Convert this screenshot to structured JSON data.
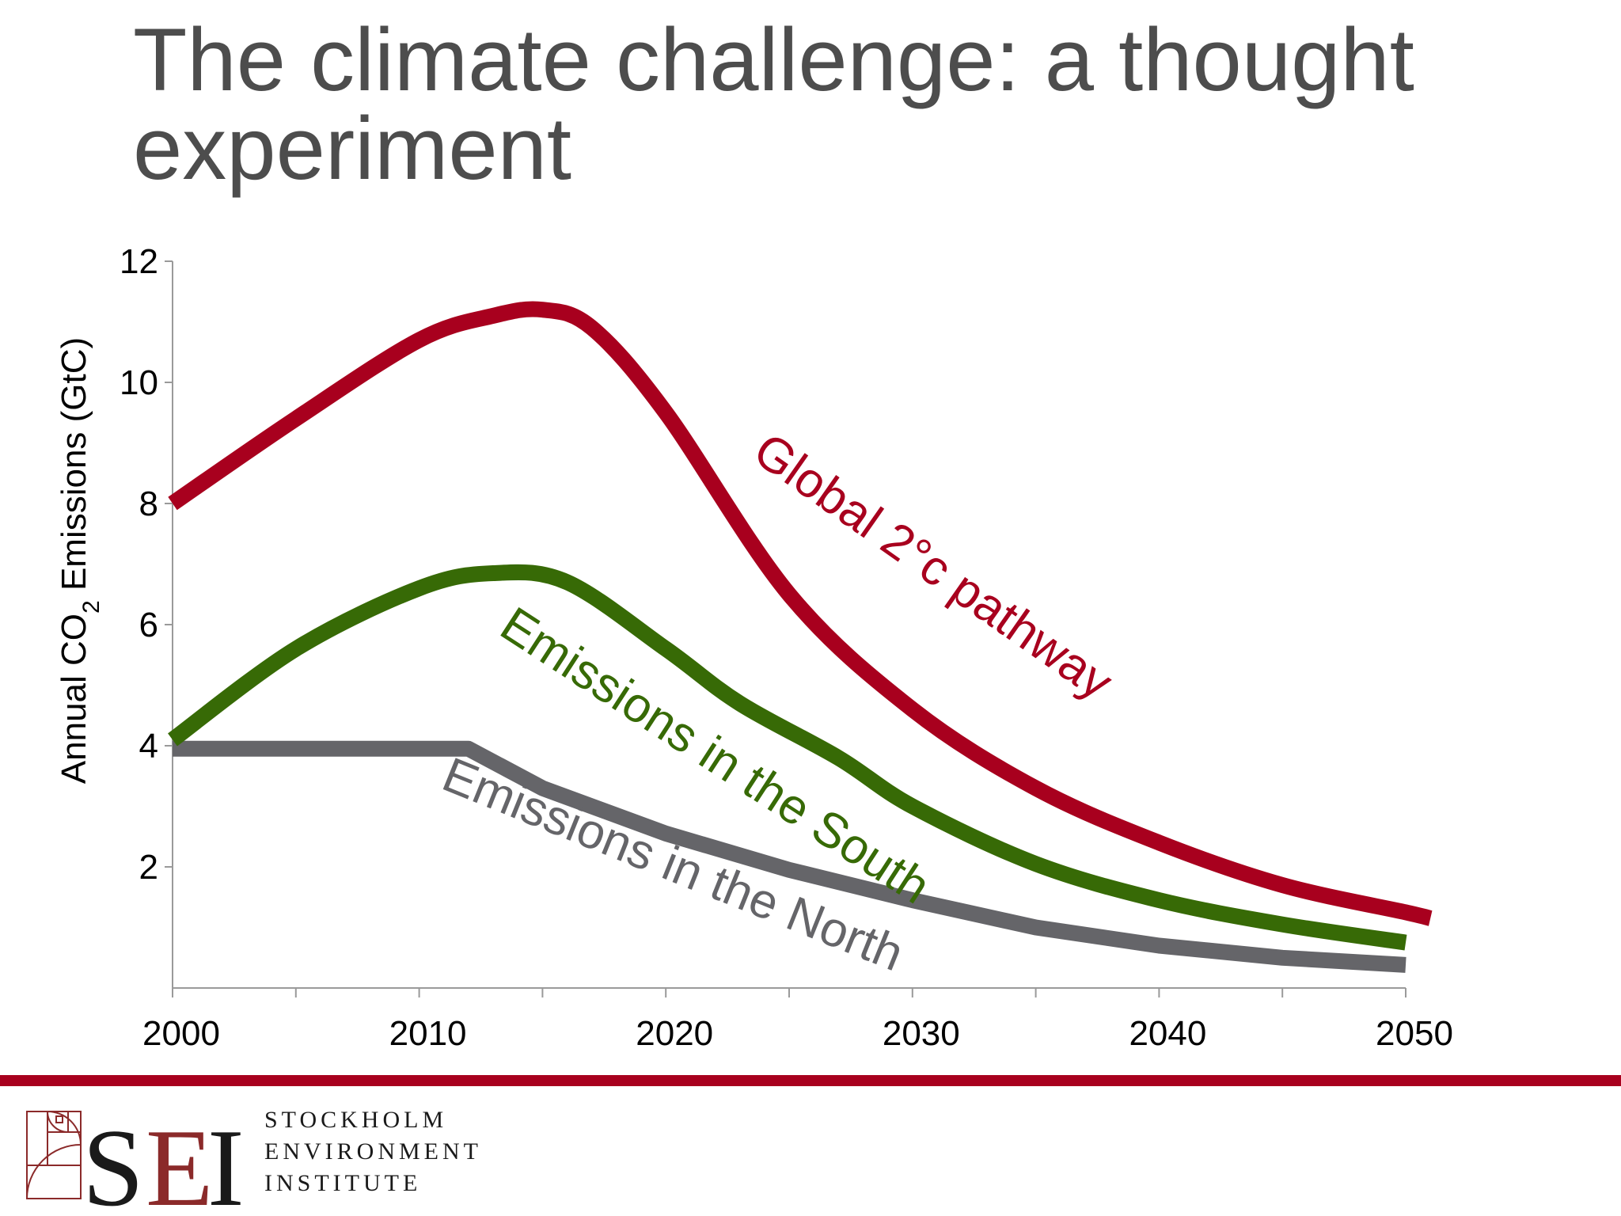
{
  "slide": {
    "title": "The climate challenge: a thought experiment"
  },
  "colors": {
    "global": "#a8001e",
    "south": "#376a06",
    "north": "#656569",
    "title": "#4d4d4d",
    "footer_rule": "#a8001e",
    "logo_dark": "#1a1a1a",
    "logo_red": "#8b2a2a"
  },
  "chart_data": {
    "type": "line",
    "title": "",
    "xlabel": "",
    "ylabel_parts": [
      "Annual CO",
      "2",
      " Emissions (GtC)"
    ],
    "xlim": [
      2000,
      2050
    ],
    "ylim": [
      0,
      12
    ],
    "x_ticks": [
      2000,
      2010,
      2020,
      2030,
      2040,
      2050
    ],
    "y_ticks": [
      2,
      4,
      6,
      8,
      10,
      12
    ],
    "grid": false,
    "series": [
      {
        "name": "Global 2°c pathway",
        "color_key": "global",
        "x": [
          2000,
          2005,
          2010,
          2013,
          2015,
          2017,
          2020,
          2025,
          2030,
          2035,
          2040,
          2045,
          2050,
          2051
        ],
        "y": [
          8.0,
          9.4,
          10.7,
          11.1,
          11.2,
          10.9,
          9.5,
          6.5,
          4.6,
          3.3,
          2.4,
          1.7,
          1.25,
          1.15
        ]
      },
      {
        "name": "Emissions in the South",
        "color_key": "south",
        "x": [
          2000,
          2005,
          2010,
          2013,
          2016,
          2020,
          2023,
          2027,
          2030,
          2035,
          2040,
          2045,
          2050
        ],
        "y": [
          4.1,
          5.6,
          6.6,
          6.85,
          6.7,
          5.6,
          4.7,
          3.8,
          3.0,
          2.05,
          1.45,
          1.05,
          0.75
        ]
      },
      {
        "name": "Emissions in the North",
        "color_key": "north",
        "x": [
          2000,
          2012,
          2015,
          2020,
          2025,
          2030,
          2035,
          2040,
          2045,
          2050
        ],
        "y": [
          3.95,
          3.95,
          3.3,
          2.55,
          1.95,
          1.45,
          1.0,
          0.7,
          0.5,
          0.38
        ]
      }
    ],
    "annotations": [
      {
        "text": "Global 2°c pathway",
        "series": "Global 2°c pathway"
      },
      {
        "text": "Emissions in the South",
        "series": "Emissions in the South"
      },
      {
        "text": "Emissions in the North",
        "series": "Emissions in the North"
      }
    ]
  },
  "footer": {
    "logo_letters": [
      "S",
      "E",
      "I"
    ],
    "org_lines": [
      "STOCKHOLM",
      "ENVIRONMENT",
      "INSTITUTE"
    ]
  }
}
